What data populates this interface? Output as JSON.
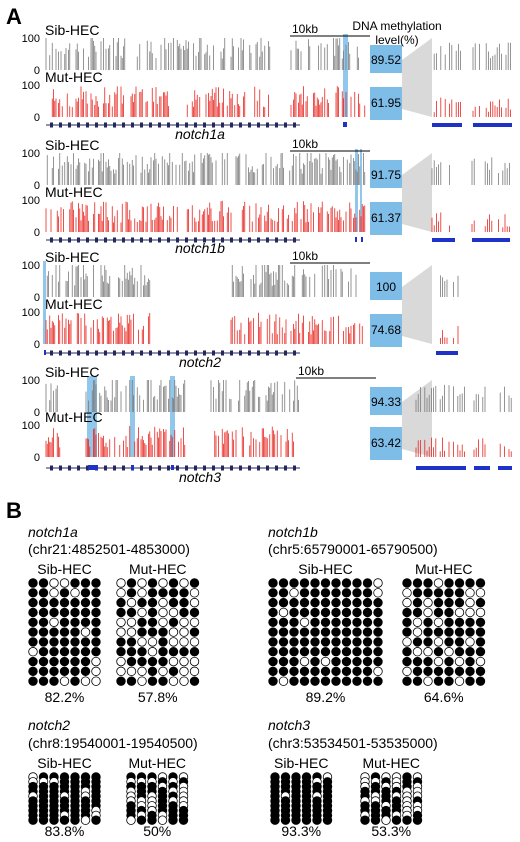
{
  "panel_a": {
    "label": "A",
    "header": {
      "line1": "DNA methylation",
      "line2": "level(%)"
    },
    "tracks": [
      {
        "gene": "notch1a",
        "scale": "10kb",
        "sib_label": "Sib-HEC",
        "mut_label": "Mut-HEC",
        "sib_value": "89.52",
        "mut_value": "61.95",
        "y_max": "100",
        "y_min": "0"
      },
      {
        "gene": "notch1b",
        "scale": "10kb",
        "sib_label": "Sib-HEC",
        "mut_label": "Mut-HEC",
        "sib_value": "91.75",
        "mut_value": "61.37",
        "y_max": "100",
        "y_min": "0"
      },
      {
        "gene": "notch2",
        "scale": "10kb",
        "sib_label": "Sib-HEC",
        "mut_label": "Mut-HEC",
        "sib_value": "100",
        "mut_value": "74.68",
        "y_max": "100",
        "y_min": "0"
      },
      {
        "gene": "notch3",
        "scale": "10kb",
        "sib_label": "Sib-HEC",
        "mut_label": "Mut-HEC",
        "sib_value": "94.33",
        "mut_value": "63.42",
        "y_max": "100",
        "y_min": "0"
      }
    ]
  },
  "panel_b": {
    "label": "B",
    "blocks": [
      {
        "gene": "notch1a",
        "coord": "(chr21:4852501-4853000)",
        "sib_label": "Sib-HEC",
        "mut_label": "Mut-HEC",
        "sib_pct": "82.2%",
        "mut_pct": "57.8%",
        "sib_ratio": 0.822,
        "mut_ratio": 0.578
      },
      {
        "gene": "notch1b",
        "coord": "(chr5:65790001-65790500)",
        "sib_label": "Sib-HEC",
        "mut_label": "Mut-HEC",
        "sib_pct": "89.2%",
        "mut_pct": "64.6%",
        "sib_ratio": 0.892,
        "mut_ratio": 0.646
      },
      {
        "gene": "notch2",
        "coord": "(chr8:19540001-19540500)",
        "sib_label": "Sib-HEC",
        "mut_label": "Mut-HEC",
        "sib_pct": "83.8%",
        "mut_pct": "50%",
        "sib_ratio": 0.838,
        "mut_ratio": 0.5
      },
      {
        "gene": "notch3",
        "coord": "(chr3:53534501-53535000)",
        "sib_label": "Sib-HEC",
        "mut_label": "Mut-HEC",
        "sib_pct": "93.3%",
        "mut_pct": "53.3%",
        "sib_ratio": 0.933,
        "mut_ratio": 0.533
      }
    ]
  },
  "colors": {
    "sib": "#7a7a7a",
    "mut": "#e8251f",
    "highlight": "#7fbde9",
    "gene": "#23275e",
    "region": "#1f32c8"
  }
}
